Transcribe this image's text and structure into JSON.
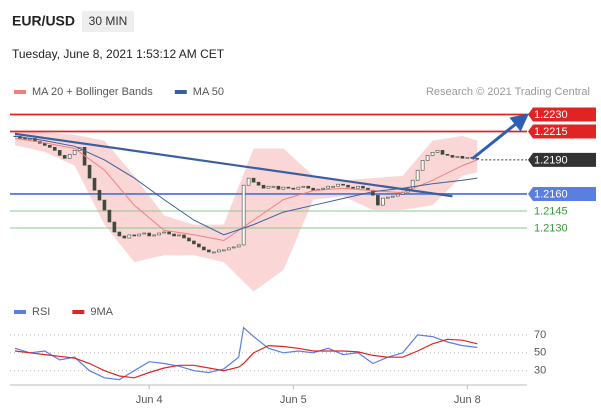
{
  "header": {
    "symbol": "EUR/USD",
    "timeframe": "30 MIN",
    "datetime": "Tuesday, June 8, 2021 1:53:12 AM CET"
  },
  "chart_data": [
    {
      "type": "candlestick",
      "source": "Research © 2021 Trading Central",
      "up_color": "#ffffff",
      "down_color": "#3e4a3e",
      "close": [
        1.22107,
        1.22089,
        1.22081,
        1.22089,
        1.22063,
        1.22046,
        1.22028,
        1.22011,
        1.21984,
        1.2194,
        1.21914,
        1.21949,
        1.21984,
        1.22011,
        1.21853,
        1.21739,
        1.21633,
        1.21546,
        1.21458,
        1.21353,
        1.21265,
        1.2123,
        1.21212,
        1.21239,
        1.2123,
        1.21247,
        1.21256,
        1.2123,
        1.21239,
        1.21256,
        1.21265,
        1.21247,
        1.2123,
        1.21239,
        1.21212,
        1.21186,
        1.2116,
        1.21133,
        1.21107,
        1.21089,
        1.21089,
        1.21107,
        1.21107,
        1.21125,
        1.21133,
        1.21151,
        1.21677,
        1.21739,
        1.21704,
        1.21677,
        1.21651,
        1.21668,
        1.21668,
        1.21642,
        1.2166,
        1.21651,
        1.21642,
        1.2166,
        1.21668,
        1.21651,
        1.21633,
        1.21642,
        1.21651,
        1.21668,
        1.21668,
        1.21686,
        1.21677,
        1.2166,
        1.21651,
        1.21668,
        1.21651,
        1.21633,
        1.21589,
        1.21502,
        1.21563,
        1.21572,
        1.21581,
        1.21598,
        1.21616,
        1.21651,
        1.21721,
        1.21809,
        1.21896,
        1.2194,
        1.21967,
        1.21984,
        1.21949,
        1.2194,
        1.21923,
        1.21932,
        1.21914,
        1.21923,
        1.21914,
        1.21905
      ],
      "xlim": [
        -1,
        103
      ],
      "ylim": [
        1.2071,
        1.2241
      ],
      "series": [
        {
          "name": "MA 20 + Bollinger Bands",
          "color": "#f08080",
          "band_color": "#f8c4c4",
          "x": [
            0,
            6,
            12,
            18,
            24,
            30,
            36,
            42,
            48,
            54,
            60,
            66,
            72,
            78,
            84,
            90,
            93
          ],
          "values": [
            1.2209,
            1.2205,
            1.22,
            1.2181,
            1.215,
            1.2128,
            1.2124,
            1.2119,
            1.2137,
            1.2155,
            1.2163,
            1.2165,
            1.2163,
            1.2161,
            1.2172,
            1.2185,
            1.219
          ],
          "upper": [
            1.2216,
            1.2214,
            1.2212,
            1.2207,
            1.2176,
            1.2141,
            1.2133,
            1.2133,
            1.22,
            1.22,
            1.2176,
            1.2172,
            1.2174,
            1.2176,
            1.2207,
            1.2211,
            1.2207
          ],
          "lower": [
            1.2203,
            1.2197,
            1.2185,
            1.2133,
            1.21,
            1.2106,
            1.2106,
            1.21,
            1.2074,
            1.2093,
            1.2155,
            1.2158,
            1.2146,
            1.2146,
            1.215,
            1.2176,
            1.2179
          ]
        },
        {
          "name": "MA 50",
          "color": "#3a5fa0",
          "x": [
            0,
            6,
            12,
            18,
            24,
            30,
            36,
            42,
            48,
            54,
            60,
            66,
            72,
            78,
            84,
            90,
            93
          ],
          "values": [
            1.2211,
            1.2207,
            1.2202,
            1.219,
            1.2174,
            1.2155,
            1.2137,
            1.2124,
            1.2133,
            1.2144,
            1.215,
            1.2156,
            1.2162,
            1.2165,
            1.2169,
            1.2172,
            1.2174
          ]
        }
      ],
      "levels": [
        {
          "value": 1.223,
          "label": "1.2230",
          "color": "#e02424",
          "boxed": true,
          "line": "solid"
        },
        {
          "value": 1.2215,
          "label": "1.2215",
          "color": "#e02424",
          "boxed": true,
          "line": "solid"
        },
        {
          "value": 1.219,
          "label": "1.2190",
          "color": "#333333",
          "boxed": true,
          "line": "dotted"
        },
        {
          "value": 1.216,
          "label": "1.2160",
          "color": "#5b7fe0",
          "boxed": true,
          "line": "solid"
        },
        {
          "value": 1.2145,
          "label": "1.2145",
          "color": "#3a9a3a",
          "boxed": false,
          "line": "solid"
        },
        {
          "value": 1.213,
          "label": "1.2130",
          "color": "#3a9a3a",
          "boxed": false,
          "line": "solid"
        }
      ],
      "trend_lines": [
        {
          "x": [
            0,
            88
          ],
          "values": [
            1.2213,
            1.2158
          ],
          "color": "#3a5fa0"
        }
      ],
      "arrow": {
        "x": [
          92,
          102
        ],
        "values": [
          1.2191,
          1.2226
        ],
        "color": "#2f5fb0"
      }
    },
    {
      "type": "line",
      "xlim": [
        -1,
        103
      ],
      "ylim": [
        14,
        81
      ],
      "yticks": [
        30,
        50,
        70
      ],
      "grid": true,
      "xticks": [
        {
          "value": 27,
          "label": "Jun 4"
        },
        {
          "value": 56,
          "label": "Jun 5"
        },
        {
          "value": 91,
          "label": "Jun 8"
        }
      ],
      "x": [
        0,
        3,
        6,
        9,
        12,
        15,
        18,
        21,
        24,
        27,
        30,
        33,
        36,
        39,
        42,
        45,
        46,
        48,
        51,
        54,
        57,
        60,
        63,
        66,
        69,
        72,
        75,
        78,
        81,
        84,
        87,
        90,
        93
      ],
      "series": [
        {
          "name": "RSI",
          "color": "#5b7fe0",
          "values": [
            55,
            50,
            52,
            42,
            45,
            30,
            22,
            20,
            30,
            40,
            38,
            35,
            30,
            28,
            32,
            45,
            78,
            68,
            55,
            50,
            52,
            50,
            55,
            48,
            50,
            38,
            45,
            50,
            70,
            68,
            62,
            58,
            56
          ]
        },
        {
          "name": "9MA",
          "color": "#e02424",
          "values": [
            52,
            50,
            48,
            46,
            44,
            38,
            30,
            24,
            22,
            28,
            33,
            36,
            36,
            33,
            30,
            34,
            38,
            50,
            58,
            57,
            55,
            52,
            52,
            52,
            51,
            47,
            45,
            45,
            52,
            60,
            65,
            64,
            60
          ]
        }
      ]
    }
  ]
}
